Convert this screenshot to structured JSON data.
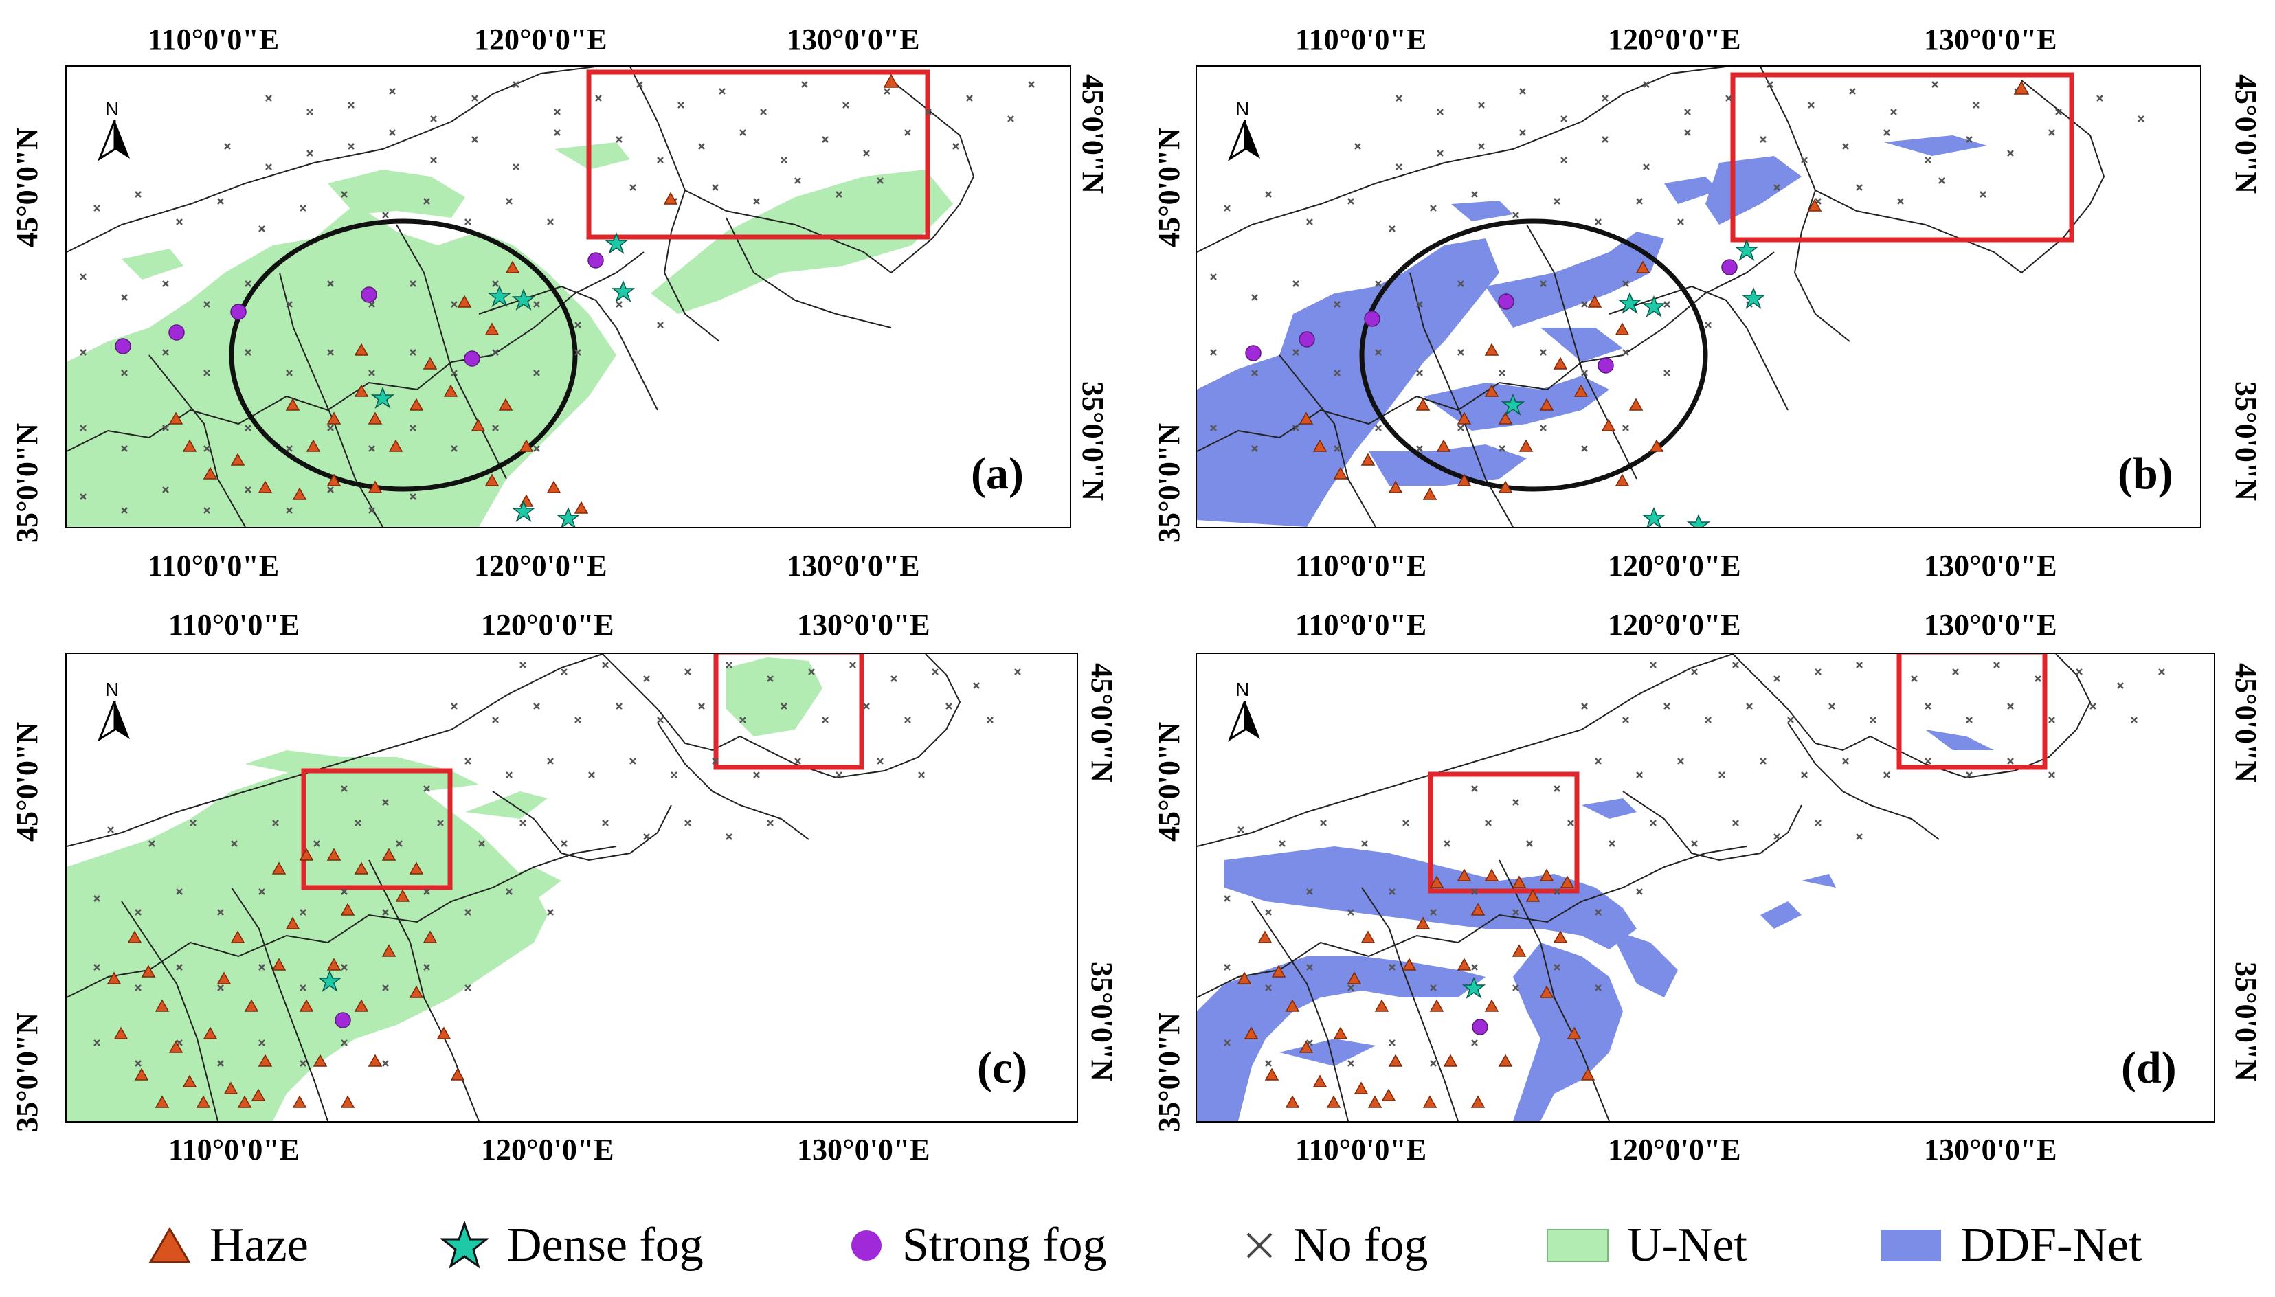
{
  "figure": {
    "longitude_labels": [
      "110°0'0\"E",
      "120°0'0\"E",
      "130°0'0\"E"
    ],
    "latitude_labels": [
      "45°0'0\"N",
      "35°0'0\"N"
    ],
    "north_label": "N",
    "colors": {
      "haze": "#d9531e",
      "dense_fog": "#1ec9a8",
      "strong_fog": "#a02ad8",
      "no_fog": "#555555",
      "unet": "#b3ecb3",
      "ddfnet": "#7b8de6",
      "highlight_box": "#e0262a",
      "circle": "#111111"
    }
  },
  "panels": [
    {
      "id": "a",
      "label": "(a)",
      "model": "U-Net"
    },
    {
      "id": "b",
      "label": "(b)",
      "model": "DDF-Net"
    },
    {
      "id": "c",
      "label": "(c)",
      "model": "U-Net"
    },
    {
      "id": "d",
      "label": "(d)",
      "model": "DDF-Net"
    }
  ],
  "legend": {
    "haze": "Haze",
    "dense_fog": "Dense fog",
    "strong_fog": "Strong fog",
    "no_fog": "No fog",
    "unet": "U-Net",
    "ddfnet": "DDF-Net"
  }
}
